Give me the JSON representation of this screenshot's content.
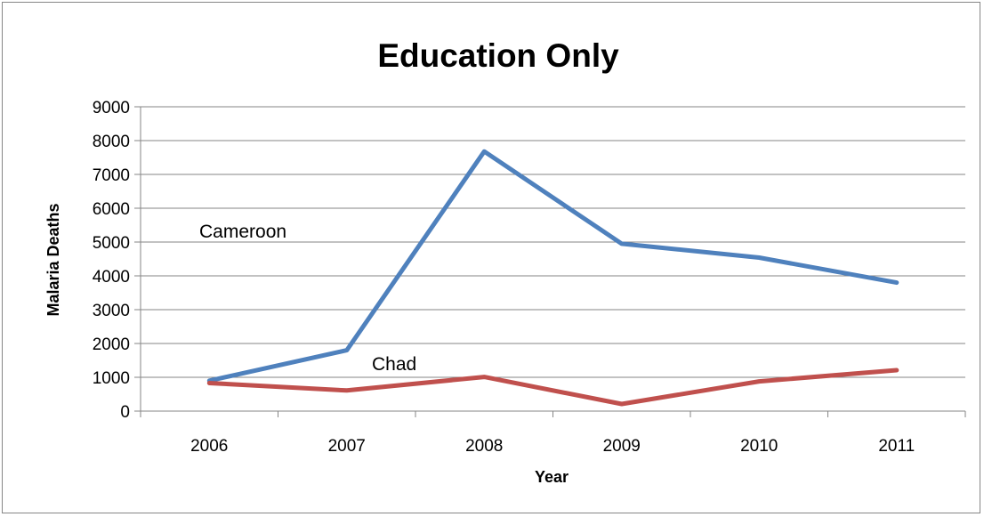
{
  "chart_data": {
    "type": "line",
    "title": "Education Only",
    "xlabel": "Year",
    "ylabel": "Malaria Deaths",
    "categories": [
      "2006",
      "2007",
      "2008",
      "2009",
      "2010",
      "2011"
    ],
    "ylim": [
      0,
      9000
    ],
    "yticks": [
      0,
      1000,
      2000,
      3000,
      4000,
      5000,
      6000,
      7000,
      8000,
      9000
    ],
    "grid": true,
    "legend": "none",
    "series": [
      {
        "name": "Cameroon",
        "color": "#4F81BD",
        "values": [
          900,
          1800,
          7680,
          4950,
          4540,
          3800
        ]
      },
      {
        "name": "Chad",
        "color": "#C0504D",
        "values": [
          830,
          610,
          1010,
          210,
          880,
          1210
        ]
      }
    ],
    "annotations": [
      "Cameroon",
      "Chad"
    ]
  }
}
